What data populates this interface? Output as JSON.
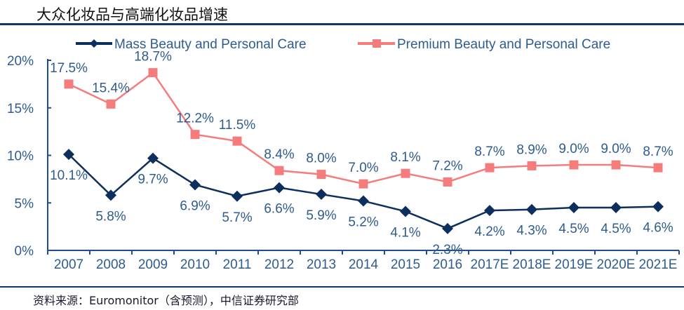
{
  "title": "大众化妆品与高端化妆品增速",
  "source": "资料来源：Euromonitor（含预测），中信证券研究部",
  "colors": {
    "mass": "#0d2f5e",
    "premium": "#f47c7c",
    "axis": "#1f4e8c",
    "text": "#2e5c8f",
    "rule": "#0f3866"
  },
  "chart_data": {
    "type": "line",
    "title": "大众化妆品与高端化妆品增速",
    "xlabel": "",
    "ylabel": "",
    "ylim": [
      0,
      20
    ],
    "y_ticks": [
      0,
      5,
      10,
      15,
      20
    ],
    "y_tick_labels": [
      "0%",
      "5%",
      "10%",
      "15%",
      "20%"
    ],
    "grid": false,
    "legend_position": "top",
    "categories": [
      "2007",
      "2008",
      "2009",
      "2010",
      "2011",
      "2012",
      "2013",
      "2014",
      "2015",
      "2016",
      "2017E",
      "2018E",
      "2019E",
      "2020E",
      "2021E"
    ],
    "series": [
      {
        "name": "Mass Beauty and Personal Care",
        "marker": "diamond",
        "values": [
          10.1,
          5.8,
          9.7,
          6.9,
          5.7,
          6.6,
          5.9,
          5.2,
          4.1,
          2.3,
          4.2,
          4.3,
          4.5,
          4.5,
          4.6
        ],
        "labels": [
          "10.1%",
          "5.8%",
          "9.7%",
          "6.9%",
          "5.7%",
          "6.6%",
          "5.9%",
          "5.2%",
          "4.1%",
          "2.3%",
          "4.2%",
          "4.3%",
          "4.5%",
          "4.5%",
          "4.6%"
        ]
      },
      {
        "name": "Premium Beauty and Personal Care",
        "marker": "square",
        "values": [
          17.5,
          15.4,
          18.7,
          12.2,
          11.5,
          8.4,
          8.0,
          7.0,
          8.1,
          7.2,
          8.7,
          8.9,
          9.0,
          9.0,
          8.7
        ],
        "labels": [
          "17.5%",
          "15.4%",
          "18.7%",
          "12.2%",
          "11.5%",
          "8.4%",
          "8.0%",
          "7.0%",
          "8.1%",
          "7.2%",
          "8.7%",
          "8.9%",
          "9.0%",
          "9.0%",
          "8.7%"
        ]
      }
    ]
  }
}
